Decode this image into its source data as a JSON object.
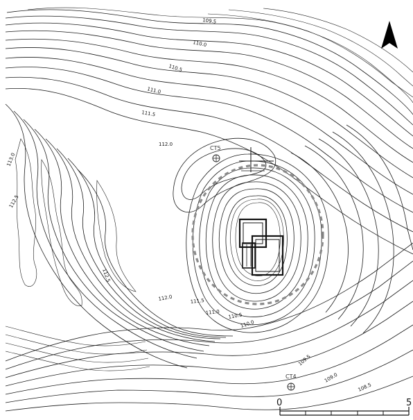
{
  "map": {
    "contour_labels": [
      "109.5",
      "110.0",
      "110.5",
      "111.0",
      "111.5",
      "112.0",
      "113.0",
      "112.5",
      "112.0",
      "111.5",
      "111.0",
      "110.5",
      "110.0",
      "109.5",
      "109.0",
      "108.5"
    ],
    "control_points": [
      "CT5",
      "CT4"
    ],
    "scale_bar": {
      "start_label": "0",
      "end_label": "5"
    },
    "north_arrow": "north-arrow-icon"
  }
}
